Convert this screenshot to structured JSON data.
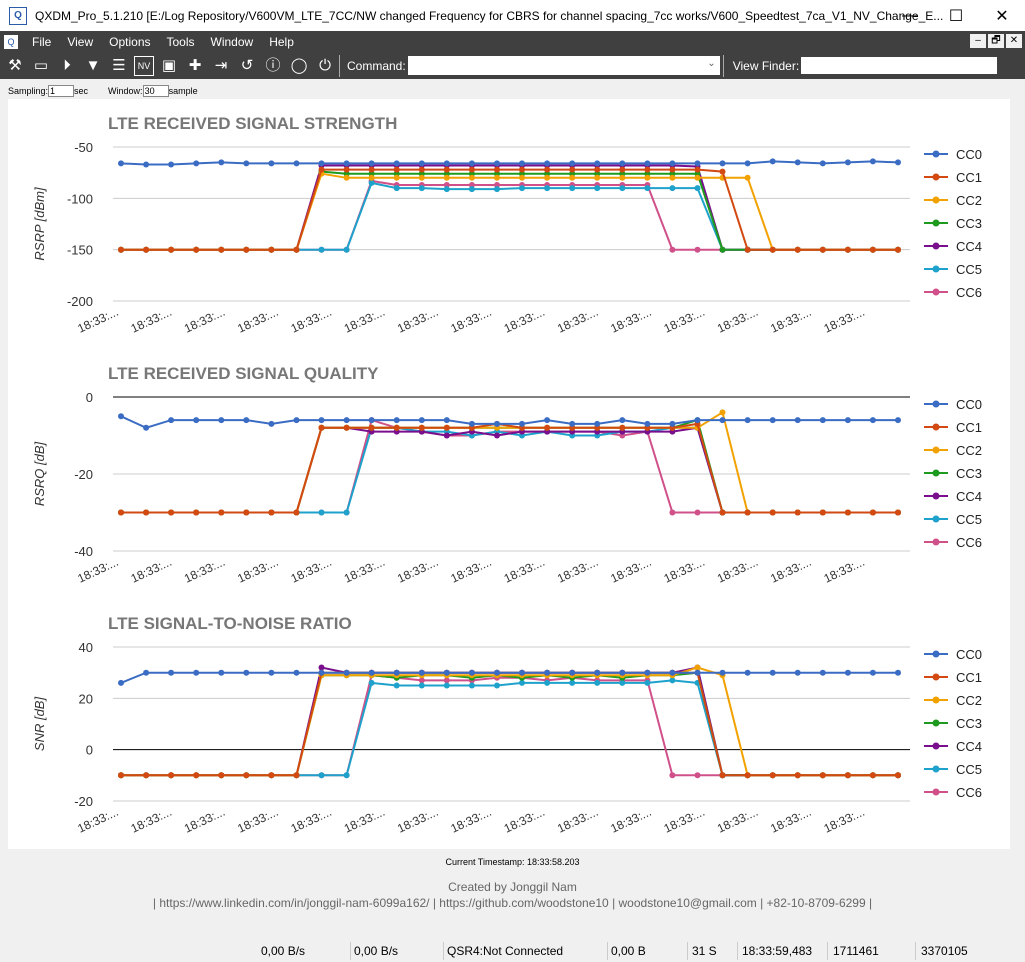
{
  "window": {
    "title": "QXDM_Pro_5.1.210 [E:/Log Repository/V600VM_LTE_7CC/NW changed Frequency for CBRS for channel spacing_7cc works/V600_Speedtest_7ca_V1_NV_Change_E...",
    "minimize": "—",
    "maximize": "☐",
    "close": "✕"
  },
  "menu": [
    "File",
    "View",
    "Options",
    "Tools",
    "Window",
    "Help"
  ],
  "mdi_buttons": [
    "–",
    "🗗",
    "✕"
  ],
  "toolbar": {
    "command_label": "Command:",
    "command_value": "",
    "viewfinder_label": "View Finder:",
    "viewfinder_value": "",
    "icons": [
      "wrench-icon",
      "folder-open-icon",
      "play-icon",
      "filter-icon",
      "list-icon",
      "nv-icon",
      "save-icon",
      "add-icon",
      "step-icon",
      "undo-icon",
      "info-icon",
      "pause-icon",
      "power-icon"
    ],
    "nv_text": "NV"
  },
  "sampling": {
    "label": "Sampling:",
    "value": "1",
    "unit": "sec",
    "window_label": "Window:",
    "window_value": "30",
    "window_unit": "sample"
  },
  "colors": {
    "CC0": "#3b6cc4",
    "CC1": "#d24a12",
    "CC2": "#f2a200",
    "CC3": "#1e9a1e",
    "CC4": "#7a0f8e",
    "CC5": "#1ea2cc",
    "CC6": "#d0508a"
  },
  "legend": [
    "CC0",
    "CC1",
    "CC2",
    "CC3",
    "CC4",
    "CC5",
    "CC6"
  ],
  "chart_data": [
    {
      "type": "line",
      "title": "LTE RECEIVED SIGNAL STRENGTH",
      "ylabel": "RSRP [dBm]",
      "ylim": [
        -200,
        -50
      ],
      "yticks": [
        -50,
        -100,
        -150,
        -200
      ],
      "xtick_label": "18:33:...",
      "series": [
        {
          "name": "CC0",
          "values": [
            -66,
            -67,
            -67,
            -66,
            -65,
            -66,
            -66,
            -66,
            -66,
            -66,
            -66,
            -66,
            -66,
            -66,
            -66,
            -66,
            -66,
            -66,
            -66,
            -66,
            -66,
            -66,
            -66,
            -66,
            -66,
            -66,
            -64,
            -65,
            -66,
            -65,
            -64,
            -65
          ]
        },
        {
          "name": "CC1",
          "values": [
            -150,
            -150,
            -150,
            -150,
            -150,
            -150,
            -150,
            -150,
            -72,
            -72,
            -72,
            -72,
            -72,
            -72,
            -72,
            -72,
            -72,
            -72,
            -72,
            -72,
            -72,
            -72,
            -72,
            -72,
            -74,
            -150,
            -150,
            -150,
            -150,
            -150,
            -150,
            -150
          ]
        },
        {
          "name": "CC2",
          "values": [
            -150,
            -150,
            -150,
            -150,
            -150,
            -150,
            -150,
            -150,
            -76,
            -80,
            -80,
            -80,
            -80,
            -80,
            -80,
            -80,
            -80,
            -80,
            -80,
            -80,
            -80,
            -80,
            -80,
            -80,
            -80,
            -80,
            -150,
            -150,
            -150,
            -150,
            -150,
            -150
          ]
        },
        {
          "name": "CC3",
          "values": [
            -150,
            -150,
            -150,
            -150,
            -150,
            -150,
            -150,
            -150,
            -74,
            -76,
            -76,
            -76,
            -76,
            -76,
            -76,
            -76,
            -76,
            -76,
            -76,
            -76,
            -76,
            -76,
            -76,
            -76,
            -150,
            -150,
            -150,
            -150,
            -150,
            -150,
            -150,
            -150
          ]
        },
        {
          "name": "CC4",
          "values": [
            -150,
            -150,
            -150,
            -150,
            -150,
            -150,
            -150,
            -150,
            -68,
            -68,
            -68,
            -68,
            -68,
            -68,
            -68,
            -68,
            -68,
            -68,
            -68,
            -68,
            -68,
            -68,
            -68,
            -69,
            -150,
            -150,
            -150,
            -150,
            -150,
            -150,
            -150,
            -150
          ]
        },
        {
          "name": "CC5",
          "values": [
            -150,
            -150,
            -150,
            -150,
            -150,
            -150,
            -150,
            -150,
            -150,
            -150,
            -85,
            -90,
            -90,
            -91,
            -91,
            -91,
            -90,
            -90,
            -90,
            -90,
            -90,
            -90,
            -90,
            -90,
            -150,
            -150,
            -150,
            -150,
            -150,
            -150,
            -150,
            -150
          ]
        },
        {
          "name": "CC6",
          "values": [
            -150,
            -150,
            -150,
            -150,
            -150,
            -150,
            -150,
            -150,
            -150,
            -150,
            -83,
            -87,
            -87,
            -87,
            -87,
            -87,
            -87,
            -87,
            -87,
            -87,
            -87,
            -87,
            -150,
            -150,
            -150,
            -150,
            -150,
            -150,
            -150,
            -150,
            -150,
            -150
          ]
        }
      ]
    },
    {
      "type": "line",
      "title": "LTE RECEIVED SIGNAL QUALITY",
      "ylabel": "RSRQ [dB]",
      "ylim": [
        -40,
        0
      ],
      "yticks": [
        0,
        -20,
        -40
      ],
      "xtick_label": "18:33:...",
      "series": [
        {
          "name": "CC0",
          "values": [
            -5,
            -8,
            -6,
            -6,
            -6,
            -6,
            -7,
            -6,
            -6,
            -6,
            -6,
            -6,
            -6,
            -6,
            -7,
            -7,
            -7,
            -6,
            -7,
            -7,
            -6,
            -7,
            -7,
            -6,
            -6,
            -6,
            -6,
            -6,
            -6,
            -6,
            -6,
            -6
          ]
        },
        {
          "name": "CC1",
          "values": [
            -30,
            -30,
            -30,
            -30,
            -30,
            -30,
            -30,
            -30,
            -8,
            -8,
            -8,
            -8,
            -8,
            -8,
            -8,
            -7,
            -8,
            -8,
            -8,
            -8,
            -8,
            -8,
            -8,
            -7,
            -30,
            -30,
            -30,
            -30,
            -30,
            -30,
            -30,
            -30
          ]
        },
        {
          "name": "CC2",
          "values": [
            -30,
            -30,
            -30,
            -30,
            -30,
            -30,
            -30,
            -30,
            -8,
            -8,
            -8,
            -8,
            -8,
            -8,
            -8,
            -8,
            -8,
            -8,
            -8,
            -8,
            -8,
            -8,
            -8,
            -8,
            -4,
            -30,
            -30,
            -30,
            -30,
            -30,
            -30,
            -30
          ]
        },
        {
          "name": "CC3",
          "values": [
            -30,
            -30,
            -30,
            -30,
            -30,
            -30,
            -30,
            -30,
            -8,
            -8,
            -8,
            -8,
            -8,
            -8,
            -8,
            -8,
            -8,
            -8,
            -8,
            -8,
            -8,
            -8,
            -8,
            -6,
            -30,
            -30,
            -30,
            -30,
            -30,
            -30,
            -30,
            -30
          ]
        },
        {
          "name": "CC4",
          "values": [
            -30,
            -30,
            -30,
            -30,
            -30,
            -30,
            -30,
            -30,
            -8,
            -8,
            -9,
            -9,
            -9,
            -10,
            -9,
            -10,
            -9,
            -9,
            -9,
            -9,
            -9,
            -9,
            -9,
            -8,
            -30,
            -30,
            -30,
            -30,
            -30,
            -30,
            -30,
            -30
          ]
        },
        {
          "name": "CC5",
          "values": [
            -30,
            -30,
            -30,
            -30,
            -30,
            -30,
            -30,
            -30,
            -30,
            -30,
            -8,
            -8,
            -9,
            -9,
            -10,
            -9,
            -10,
            -9,
            -10,
            -10,
            -9,
            -9,
            -8,
            -8,
            -30,
            -30,
            -30,
            -30,
            -30,
            -30,
            -30,
            -30
          ]
        },
        {
          "name": "CC6",
          "values": [
            -30,
            -30,
            -30,
            -30,
            -30,
            -30,
            -30,
            -30,
            -30,
            -30,
            -6,
            -8,
            -9,
            -10,
            -10,
            -9,
            -9,
            -9,
            -9,
            -9,
            -10,
            -9,
            -30,
            -30,
            -30,
            -30,
            -30,
            -30,
            -30,
            -30,
            -30,
            -30
          ]
        }
      ]
    },
    {
      "type": "line",
      "title": "LTE SIGNAL-TO-NOISE RATIO",
      "ylabel": "SNR [dB]",
      "ylim": [
        -20,
        40
      ],
      "yticks": [
        40,
        20,
        0,
        -20
      ],
      "xtick_label": "18:33:...",
      "series": [
        {
          "name": "CC0",
          "values": [
            26,
            30,
            30,
            30,
            30,
            30,
            30,
            30,
            30,
            30,
            30,
            30,
            30,
            30,
            30,
            30,
            30,
            30,
            30,
            30,
            30,
            30,
            30,
            30,
            30,
            30,
            30,
            30,
            30,
            30,
            30,
            30
          ]
        },
        {
          "name": "CC1",
          "values": [
            -10,
            -10,
            -10,
            -10,
            -10,
            -10,
            -10,
            -10,
            30,
            30,
            30,
            30,
            30,
            30,
            30,
            30,
            30,
            30,
            30,
            30,
            30,
            30,
            30,
            30,
            -10,
            -10,
            -10,
            -10,
            -10,
            -10,
            -10,
            -10
          ]
        },
        {
          "name": "CC2",
          "values": [
            -10,
            -10,
            -10,
            -10,
            -10,
            -10,
            -10,
            -10,
            29,
            29,
            29,
            29,
            29,
            29,
            29,
            29,
            29,
            29,
            29,
            29,
            29,
            29,
            29,
            32,
            29,
            -10,
            -10,
            -10,
            -10,
            -10,
            -10,
            -10
          ]
        },
        {
          "name": "CC3",
          "values": [
            -10,
            -10,
            -10,
            -10,
            -10,
            -10,
            -10,
            -10,
            29,
            29,
            29,
            28,
            29,
            29,
            28,
            29,
            28,
            29,
            28,
            29,
            28,
            29,
            29,
            30,
            -10,
            -10,
            -10,
            -10,
            -10,
            -10,
            -10,
            -10
          ]
        },
        {
          "name": "CC4",
          "values": [
            -10,
            -10,
            -10,
            -10,
            -10,
            -10,
            -10,
            -10,
            32,
            30,
            30,
            30,
            30,
            30,
            30,
            30,
            30,
            30,
            30,
            30,
            30,
            30,
            30,
            32,
            -10,
            -10,
            -10,
            -10,
            -10,
            -10,
            -10,
            -10
          ]
        },
        {
          "name": "CC5",
          "values": [
            -10,
            -10,
            -10,
            -10,
            -10,
            -10,
            -10,
            -10,
            -10,
            -10,
            26,
            25,
            25,
            25,
            25,
            25,
            26,
            26,
            26,
            26,
            26,
            26,
            27,
            26,
            -10,
            -10,
            -10,
            -10,
            -10,
            -10,
            -10,
            -10
          ]
        },
        {
          "name": "CC6",
          "values": [
            -10,
            -10,
            -10,
            -10,
            -10,
            -10,
            -10,
            -10,
            -10,
            -10,
            29,
            28,
            27,
            27,
            27,
            28,
            28,
            27,
            28,
            27,
            27,
            27,
            -10,
            -10,
            -10,
            -10,
            -10,
            -10,
            -10,
            -10,
            -10,
            -10
          ]
        }
      ]
    }
  ],
  "current_timestamp": "Current Timestamp: 18:33:58.203",
  "credit_line1": "Created by Jonggil Nam",
  "credit_line2": "| https://www.linkedin.com/in/jonggil-nam-6099a162/ | https://github.com/woodstone10 | woodstone10@gmail.com | +82-10-8709-6299 |",
  "status": [
    "0,00 B/s",
    "0,00 B/s",
    "QSR4:Not Connected",
    "0,00 B",
    "31 S",
    "18:33:59,483",
    "1711461",
    "3370105"
  ]
}
